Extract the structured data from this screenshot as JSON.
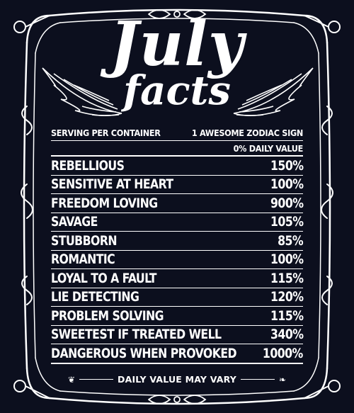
{
  "title": {
    "line1": "July",
    "line2": "facts"
  },
  "serving": {
    "label": "SERVING PER CONTAINER",
    "value": "1 AWESOME ZODIAC SIGN"
  },
  "daily_value_header": "0% DAILY VALUE",
  "facts": [
    {
      "name": "REBELLIOUS",
      "value": "150%"
    },
    {
      "name": "SENSITIVE AT HEART",
      "value": "100%"
    },
    {
      "name": "FREEDOM LOVING",
      "value": "900%"
    },
    {
      "name": "SAVAGE",
      "value": "105%"
    },
    {
      "name": "STUBBORN",
      "value": "85%"
    },
    {
      "name": "ROMANTIC",
      "value": "100%"
    },
    {
      "name": "LOYAL TO A FAULT",
      "value": "115%"
    },
    {
      "name": "LIE DETECTING",
      "value": "120%"
    },
    {
      "name": "PROBLEM SOLVING",
      "value": "115%"
    },
    {
      "name": "SWEETEST IF TREATED WELL",
      "value": "340%"
    },
    {
      "name": "DANGEROUS WHEN PROVOKED",
      "value": "1000%"
    }
  ],
  "footer": "DAILY VALUE MAY VARY",
  "colors": {
    "background": "#0c0f1e",
    "foreground": "#ffffff"
  },
  "icons": {
    "frame": "ornate-frame-border",
    "wings": "angel-wing-icon",
    "footer_ornament": "flourish-ornament-icon"
  }
}
